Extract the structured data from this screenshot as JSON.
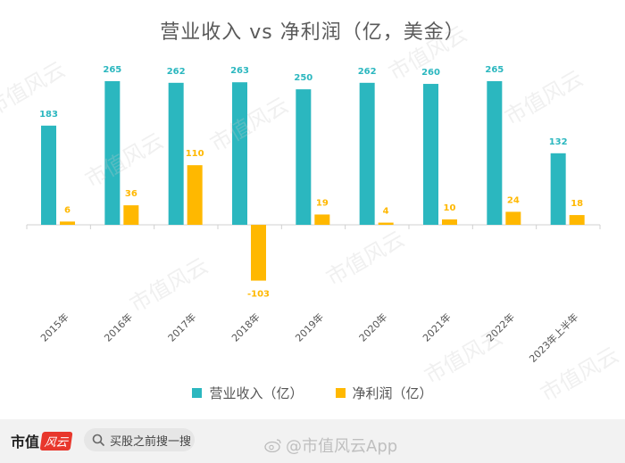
{
  "chart_data": {
    "type": "bar",
    "title": "营业收入 vs 净利润（亿，美金）",
    "categories": [
      "2015年",
      "2016年",
      "2017年",
      "2018年",
      "2019年",
      "2020年",
      "2021年",
      "2022年",
      "2023年上半年"
    ],
    "series": [
      {
        "name": "营业收入（亿）",
        "color": "#2bb7bf",
        "values": [
          183,
          265,
          262,
          263,
          250,
          262,
          260,
          265,
          132
        ]
      },
      {
        "name": "净利润（亿）",
        "color": "#ffb800",
        "values": [
          6,
          36,
          110,
          -103,
          19,
          4,
          10,
          24,
          18
        ]
      }
    ],
    "ylim": [
      -110,
      280
    ],
    "grid": false,
    "legend_position": "bottom"
  },
  "footer": {
    "brand_text": "市值",
    "brand_logo": "风云",
    "search_placeholder": "买股之前搜一搜",
    "source_watermark": "@市值风云App"
  },
  "watermark_text": "市值风云",
  "colors": {
    "revenue": "#2bb7bf",
    "profit": "#ffb800"
  }
}
